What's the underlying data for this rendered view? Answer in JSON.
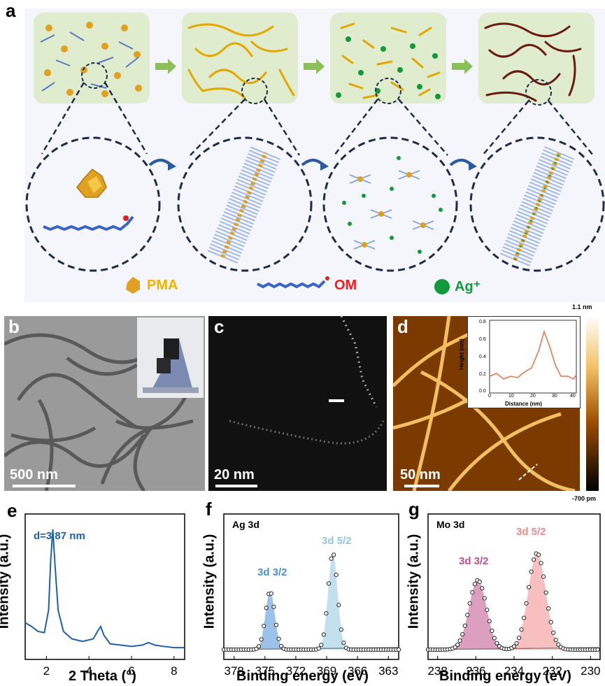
{
  "panel_labels": {
    "a": "a",
    "b": "b",
    "c": "c",
    "d": "d",
    "e": "e",
    "f": "f",
    "g": "g"
  },
  "legend": {
    "pma": "PMA",
    "om": "OM",
    "ag": "Ag⁺"
  },
  "scale_bars": {
    "b": "500 nm",
    "c": "20 nm",
    "d": "50 nm"
  },
  "colorbar": {
    "max": "1.1 nm",
    "min": "-700 pm"
  },
  "inset_d": {
    "xlabel": "Distance (nm)",
    "ylabel": "Height (nm)",
    "xticks": [
      "0",
      "10",
      "20",
      "30",
      "40"
    ],
    "yticks": [
      "0.0",
      "0.2",
      "0.4",
      "0.6",
      "0.8"
    ]
  },
  "colors": {
    "pma": "#f2b300",
    "om": "#ff1a1a",
    "ag": "#129a3a",
    "xrd": "#1f5fae",
    "ag32": "#4a90d9",
    "ag52": "#8fc7e0",
    "mo32": "#c0508a",
    "mo52": "#f08a8a"
  },
  "chart_data": [
    {
      "type": "line",
      "title": "",
      "xlabel": "2 Theta (°)",
      "ylabel": "Intensity (a.u.)",
      "xlim": [
        1,
        8.5
      ],
      "xticks": [
        "2",
        "4",
        "6",
        "8"
      ],
      "annotation": "d=3.87 nm",
      "series": [
        {
          "x": [
            1.0,
            1.3,
            1.6,
            1.9,
            2.1,
            2.2,
            2.3,
            2.4,
            2.55,
            2.8,
            3.2,
            3.7,
            4.2,
            4.4,
            4.55,
            4.7,
            5.0,
            5.5,
            6.0,
            6.5,
            6.8,
            7.1,
            7.5,
            8.0,
            8.5
          ],
          "y": [
            0.25,
            0.22,
            0.18,
            0.17,
            0.35,
            0.75,
            1.0,
            0.72,
            0.35,
            0.18,
            0.12,
            0.1,
            0.12,
            0.18,
            0.22,
            0.15,
            0.08,
            0.07,
            0.06,
            0.07,
            0.09,
            0.07,
            0.06,
            0.05,
            0.05
          ]
        }
      ]
    },
    {
      "type": "scatter",
      "title": "Ag 3d",
      "xlabel": "Binding energy (eV)",
      "ylabel": "Intensity (a.u.)",
      "xlim": [
        379,
        362
      ],
      "xticks": [
        "378",
        "375",
        "372",
        "369",
        "366",
        "363"
      ],
      "peaks": [
        {
          "name": "3d 3/2",
          "center": 374.5,
          "height": 0.6
        },
        {
          "name": "3d 5/2",
          "center": 368.4,
          "height": 1.0
        }
      ]
    },
    {
      "type": "scatter",
      "title": "Mo 3d",
      "xlabel": "Binding energy (eV)",
      "ylabel": "Intensity (a.u.)",
      "xlim": [
        238.5,
        229.5
      ],
      "xticks": [
        "238",
        "236",
        "234",
        "232",
        "230"
      ],
      "peaks": [
        {
          "name": "3d 3/2",
          "center": 235.9,
          "height": 0.72
        },
        {
          "name": "3d 5/2",
          "center": 232.8,
          "height": 1.0
        }
      ]
    }
  ]
}
